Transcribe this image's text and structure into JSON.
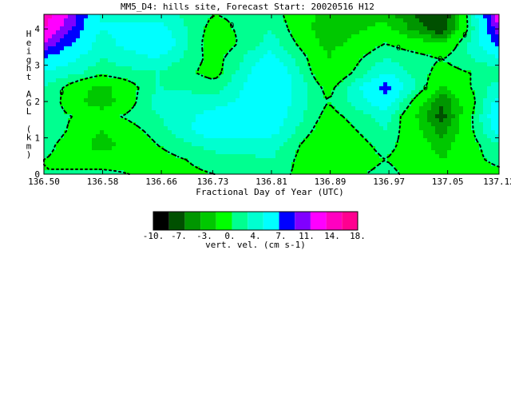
{
  "chart_data": {
    "type": "heatmap",
    "title": "MM5_D4: hills site,  Forecast Start: 20020516 H12",
    "xlabel": "Fractional Day of Year (UTC)",
    "ylabel": "Height AGL (km)",
    "xlim": [
      136.5,
      137.12
    ],
    "ylim": [
      0,
      4.4
    ],
    "x_tick_labels": [
      "136.50",
      "136.58",
      "136.66",
      "136.73",
      "136.81",
      "136.89",
      "136.97",
      "137.05",
      "137.12"
    ],
    "x_tick_values": [
      136.5,
      136.58,
      136.66,
      136.73,
      136.81,
      136.89,
      136.97,
      137.05,
      137.12
    ],
    "y_tick_labels": [
      "0",
      "1",
      "2",
      "3",
      "4"
    ],
    "y_tick_values": [
      0,
      1,
      2,
      3,
      4
    ],
    "x": [
      136.5,
      136.5775,
      136.655,
      136.7325,
      136.81,
      136.8875,
      136.965,
      137.0425,
      137.12
    ],
    "y": [
      0,
      0.4,
      0.8,
      1.2,
      1.6,
      2.0,
      2.4,
      2.8,
      3.2,
      3.6,
      4.0,
      4.4
    ],
    "z": [
      [
        0,
        1,
        -1,
        0,
        1,
        -2,
        1,
        -3,
        -1
      ],
      [
        0,
        -2,
        -1,
        1,
        2,
        -3,
        0,
        -3,
        1
      ],
      [
        1,
        -4,
        0,
        3,
        3,
        -3,
        1,
        -4,
        2
      ],
      [
        2,
        -3,
        1,
        6,
        5,
        -2,
        2,
        -6,
        5
      ],
      [
        1,
        -1,
        2,
        5,
        6,
        -1,
        3,
        -8,
        7
      ],
      [
        2,
        -5,
        3,
        3,
        6,
        0,
        6,
        -7,
        5
      ],
      [
        2,
        -4,
        2,
        1,
        7,
        -1,
        8,
        -3,
        3
      ],
      [
        4,
        1,
        2,
        -1,
        7,
        -3,
        4,
        -1,
        1
      ],
      [
        7,
        2,
        4,
        -1,
        5,
        -3,
        2,
        0,
        4
      ],
      [
        11,
        3,
        7,
        -2,
        3,
        -4,
        0,
        -3,
        8
      ],
      [
        14,
        4,
        5,
        -1,
        2,
        -5,
        -2,
        -9,
        11
      ],
      [
        16,
        4,
        3,
        0,
        1,
        -4,
        -4,
        -10,
        13
      ]
    ],
    "colorbar": {
      "label": "vert. vel. (cm s-1)",
      "tick_labels": [
        "-10.",
        "-7.",
        "-3.",
        "0.",
        "4.",
        "7.",
        "11.",
        "14.",
        "18."
      ],
      "levels": [
        -12,
        -10,
        -7,
        -5,
        -3,
        0,
        2,
        4,
        7,
        9,
        11,
        14,
        16,
        18
      ],
      "colors": [
        "#000000",
        "#005000",
        "#009600",
        "#00c800",
        "#00ff00",
        "#00ff90",
        "#00ffd0",
        "#00ffff",
        "#0000ff",
        "#8000ff",
        "#ff00ff",
        "#ff00c0",
        "#ff0090"
      ]
    },
    "contour_levels": [
      0
    ],
    "contour_label": "0",
    "contour_style": "dotted"
  }
}
